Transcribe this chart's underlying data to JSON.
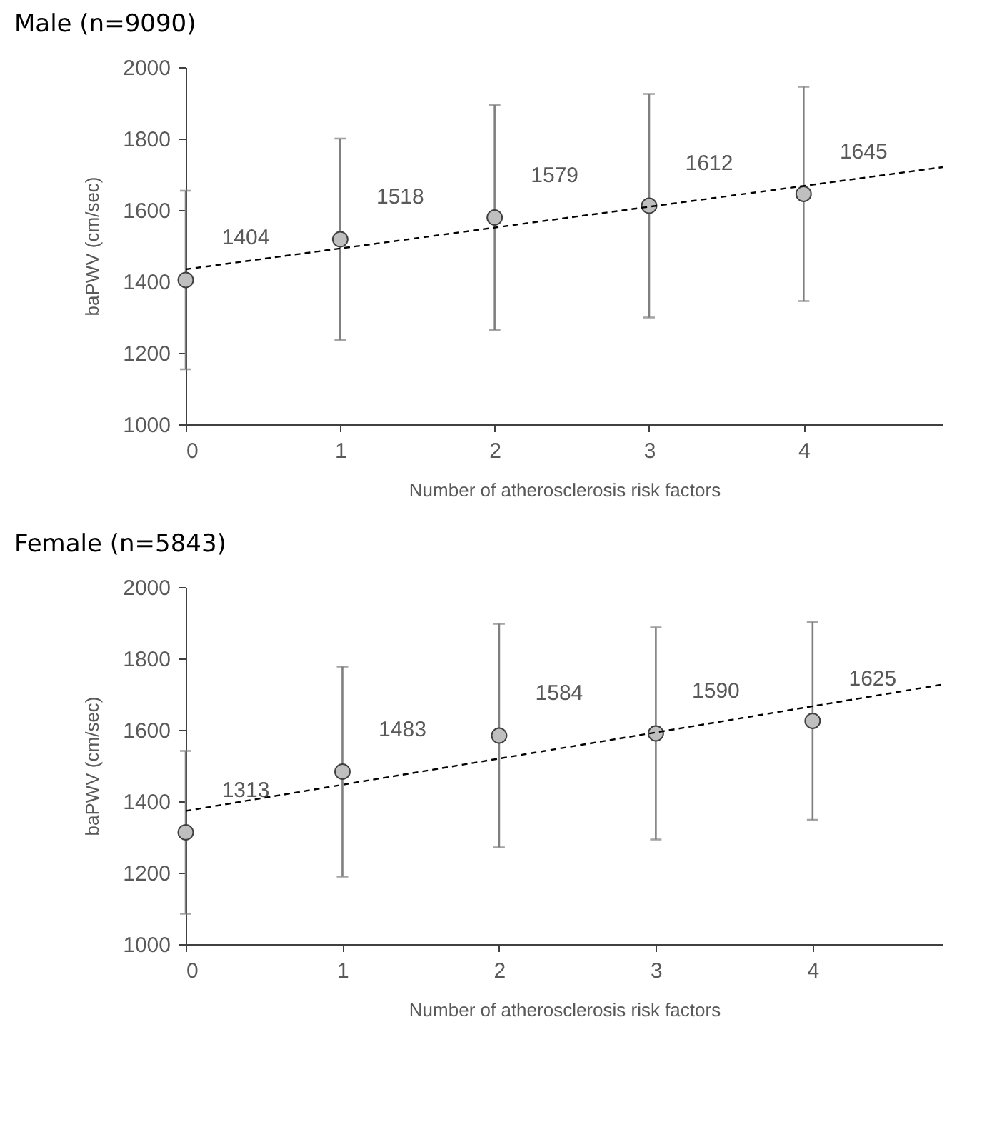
{
  "chart_data": [
    {
      "type": "scatter",
      "title": "Male (n=9090)",
      "xlabel": "Number of atherosclerosis risk factors",
      "ylabel": "baPWV (cm/sec)",
      "xlim": [
        0,
        4.9
      ],
      "xticks": [
        0,
        1,
        2,
        3,
        4
      ],
      "ylim": [
        1000,
        2000
      ],
      "yticks": [
        1000,
        1200,
        1400,
        1600,
        1800,
        2000
      ],
      "grid": false,
      "series": [
        {
          "x": [
            0,
            1,
            2,
            3,
            4
          ],
          "values": [
            1404,
            1518,
            1579,
            1612,
            1645
          ],
          "errors": [
            250,
            282,
            315,
            313,
            300
          ],
          "color": "#bfbfbf",
          "marker": "circle",
          "value_labels": [
            "1404",
            "1518",
            "1579",
            "1612",
            "1645"
          ]
        },
        {
          "type": "line",
          "x": [
            0,
            4.9
          ],
          "values": [
            1434,
            1720
          ],
          "color": "#000000",
          "line_style": "dashed"
        }
      ]
    },
    {
      "type": "scatter",
      "title": "Female (n=5843)",
      "xlabel": "Number of atherosclerosis risk factors",
      "ylabel": "baPWV (cm/sec)",
      "xlim": [
        0,
        4.83
      ],
      "xticks": [
        0,
        1,
        2,
        3,
        4
      ],
      "ylim": [
        1000,
        2000
      ],
      "yticks": [
        1000,
        1200,
        1400,
        1600,
        1800,
        2000
      ],
      "grid": false,
      "series": [
        {
          "x": [
            0,
            1,
            2,
            3,
            4
          ],
          "values": [
            1313,
            1483,
            1584,
            1590,
            1625
          ],
          "errors": [
            228,
            294,
            313,
            297,
            277
          ],
          "color": "#bfbfbf",
          "marker": "circle",
          "value_labels": [
            "1313",
            "1483",
            "1584",
            "1590",
            "1625"
          ]
        },
        {
          "type": "line",
          "x": [
            0,
            4.83
          ],
          "values": [
            1373,
            1727
          ],
          "color": "#000000",
          "line_style": "dashed"
        }
      ]
    }
  ]
}
